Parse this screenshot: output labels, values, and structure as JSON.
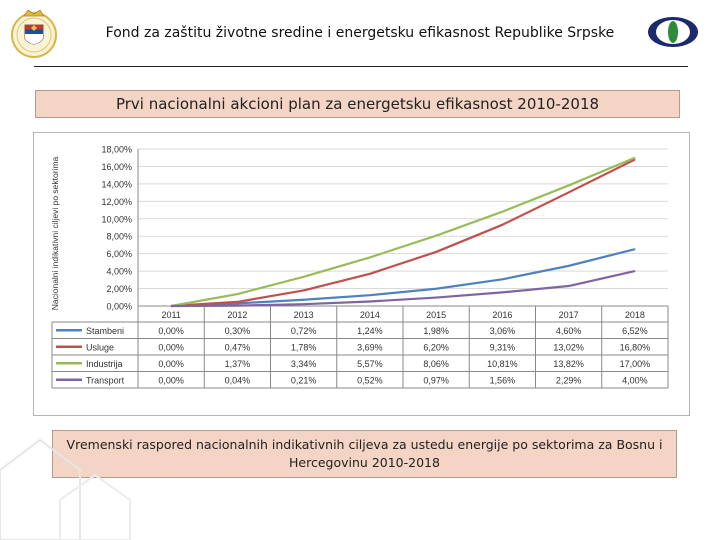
{
  "header": {
    "title": "Fond za zaštitu životne sredine i energetsku efikasnost Republike Srpske"
  },
  "plan_title": "Prvi nacionalni akcioni plan za energetsku efikasnost 2010-2018",
  "caption": "Vremenski raspored nacionalnih indikativnih ciljeva za ustedu energije po sektorima za Bosnu i Hercegovinu 2010-2018",
  "colors": {
    "stambeni": "#4f81bd",
    "usluge": "#c0504d",
    "industrija": "#9bbb59",
    "transport": "#8064a2",
    "title_box_bg": "#f3d4c5"
  },
  "chart_data": {
    "type": "line",
    "title": "",
    "ylabel": "Nacionalni indikativni ciljevi po sektorima",
    "xlabel": "",
    "categories": [
      "2011",
      "2012",
      "2013",
      "2014",
      "2015",
      "2016",
      "2017",
      "2018"
    ],
    "ylim": [
      0,
      18
    ],
    "yticks": [
      "0,00%",
      "2,00%",
      "4,00%",
      "6,00%",
      "8,00%",
      "10,00%",
      "12,00%",
      "14,00%",
      "16,00%",
      "18,00%"
    ],
    "grid": true,
    "legend": "data table below chart",
    "series": [
      {
        "name": "Stambeni",
        "key": "stambeni",
        "values": [
          0.0,
          0.3,
          0.72,
          1.24,
          1.98,
          3.06,
          4.6,
          6.52
        ],
        "labels": [
          "0,00%",
          "0,30%",
          "0,72%",
          "1,24%",
          "1,98%",
          "3,06%",
          "4,60%",
          "6,52%"
        ]
      },
      {
        "name": "Usluge",
        "key": "usluge",
        "values": [
          0.0,
          0.47,
          1.78,
          3.69,
          6.2,
          9.31,
          13.02,
          16.8
        ],
        "labels": [
          "0,00%",
          "0,47%",
          "1,78%",
          "3,69%",
          "6,20%",
          "9,31%",
          "13,02%",
          "16,80%"
        ]
      },
      {
        "name": "Industrija",
        "key": "industrija",
        "values": [
          0.0,
          1.37,
          3.34,
          5.57,
          8.06,
          10.81,
          13.82,
          17.0
        ],
        "labels": [
          "0,00%",
          "1,37%",
          "3,34%",
          "5,57%",
          "8,06%",
          "10,81%",
          "13,82%",
          "17,00%"
        ]
      },
      {
        "name": "Transport",
        "key": "transport",
        "values": [
          0.0,
          0.04,
          0.21,
          0.52,
          0.97,
          1.56,
          2.29,
          4.0
        ],
        "labels": [
          "0,00%",
          "0,04%",
          "0,21%",
          "0,52%",
          "0,97%",
          "1,56%",
          "2,29%",
          "4,00%"
        ]
      }
    ]
  }
}
